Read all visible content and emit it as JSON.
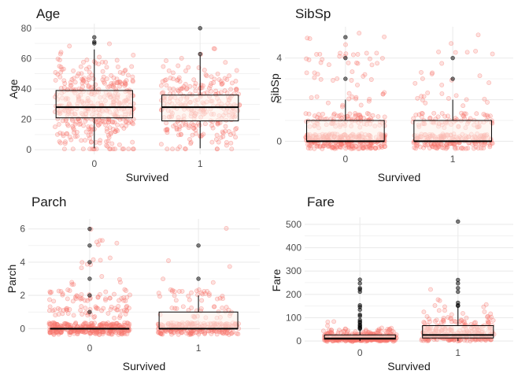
{
  "chart_data": [
    {
      "type": "scatter",
      "subtype": "boxplot-with-jitter",
      "title": "Age",
      "xlabel": "Survived",
      "ylabel": "Age",
      "categories": [
        "0",
        "1"
      ],
      "ylim": [
        -3,
        83
      ],
      "yticks": [
        0,
        20,
        40,
        60,
        80
      ],
      "box": [
        {
          "category": "0",
          "min": 1,
          "q1": 21,
          "median": 28,
          "q3": 39,
          "max": 66
        },
        {
          "category": "1",
          "min": 1,
          "q1": 19,
          "median": 28,
          "q3": 36,
          "max": 62
        }
      ],
      "outliers": [
        {
          "category": "0",
          "values": [
            70,
            71,
            74
          ]
        },
        {
          "category": "1",
          "values": [
            63,
            80
          ]
        }
      ],
      "jitter": {
        "count": [
          424,
          290
        ],
        "spread": "uniform",
        "range": [
          0.5,
          80
        ]
      },
      "colors": {
        "points": "#f8766d",
        "box_fill": "#fdf1ea",
        "grid": "#ebebeb"
      }
    },
    {
      "type": "scatter",
      "subtype": "boxplot-with-jitter",
      "title": "SibSp",
      "xlabel": "Survived",
      "ylabel": "SibSp",
      "categories": [
        "0",
        "1"
      ],
      "ylim": [
        -0.4,
        5.5
      ],
      "yticks": [
        0,
        2,
        4
      ],
      "box": [
        {
          "category": "0",
          "min": 0,
          "q1": 0,
          "median": 0,
          "q3": 1,
          "max": 2
        },
        {
          "category": "1",
          "min": 0,
          "q1": 0,
          "median": 0,
          "q3": 1,
          "max": 2
        }
      ],
      "outliers": [
        {
          "category": "0",
          "values": [
            3,
            4,
            5
          ]
        },
        {
          "category": "1",
          "values": [
            3,
            4
          ]
        }
      ],
      "jitter": {
        "count": [
          424,
          290
        ],
        "spread": "integer",
        "levels": [
          0,
          1,
          2,
          3,
          4,
          5
        ],
        "weights": [
          0.68,
          0.22,
          0.05,
          0.03,
          0.03,
          0.01
        ]
      },
      "colors": {
        "points": "#f8766d",
        "box_fill": "#fdf1ea",
        "grid": "#ebebeb"
      }
    },
    {
      "type": "scatter",
      "subtype": "boxplot-with-jitter",
      "title": "Parch",
      "xlabel": "Survived",
      "ylabel": "Parch",
      "categories": [
        "0",
        "1"
      ],
      "ylim": [
        -0.6,
        6.6
      ],
      "yticks": [
        0,
        2,
        4,
        6
      ],
      "box": [
        {
          "category": "0",
          "min": 0,
          "q1": 0,
          "median": 0,
          "q3": 0,
          "max": 0
        },
        {
          "category": "1",
          "min": 0,
          "q1": 0,
          "median": 0,
          "q3": 1,
          "max": 2
        }
      ],
      "outliers": [
        {
          "category": "0",
          "values": [
            1,
            2,
            3,
            4,
            5,
            6
          ]
        },
        {
          "category": "1",
          "values": [
            3,
            5
          ]
        }
      ],
      "jitter": {
        "count": [
          424,
          290
        ],
        "spread": "integer",
        "levels": [
          0,
          1,
          2,
          3,
          4,
          5,
          6
        ],
        "weights": [
          0.74,
          0.14,
          0.09,
          0.01,
          0.01,
          0.008,
          0.002
        ]
      },
      "colors": {
        "points": "#f8766d",
        "box_fill": "#fdf1ea",
        "grid": "#ebebeb"
      }
    },
    {
      "type": "scatter",
      "subtype": "boxplot-with-jitter",
      "title": "Fare",
      "xlabel": "Survived",
      "ylabel": "Fare",
      "categories": [
        "0",
        "1"
      ],
      "ylim": [
        -10,
        530
      ],
      "yticks": [
        0,
        100,
        200,
        300,
        400,
        500
      ],
      "box": [
        {
          "category": "0",
          "min": 0,
          "q1": 8,
          "median": 11,
          "q3": 26,
          "max": 50
        },
        {
          "category": "1",
          "min": 0,
          "q1": 13,
          "median": 26,
          "q3": 66,
          "max": 145
        }
      ],
      "outliers": [
        {
          "category": "0",
          "values": [
            52,
            56,
            60,
            66,
            70,
            78,
            83,
            90,
            107,
            113,
            134,
            146,
            153,
            211,
            221,
            227,
            247,
            263
          ]
        },
        {
          "category": "1",
          "values": [
            151,
            153,
            164,
            211,
            227,
            247,
            262,
            512
          ]
        }
      ],
      "jitter": {
        "count": [
          424,
          290
        ],
        "spread": "skewed"
      },
      "colors": {
        "points": "#f8766d",
        "box_fill": "#fdf1ea",
        "grid": "#ebebeb"
      }
    }
  ]
}
